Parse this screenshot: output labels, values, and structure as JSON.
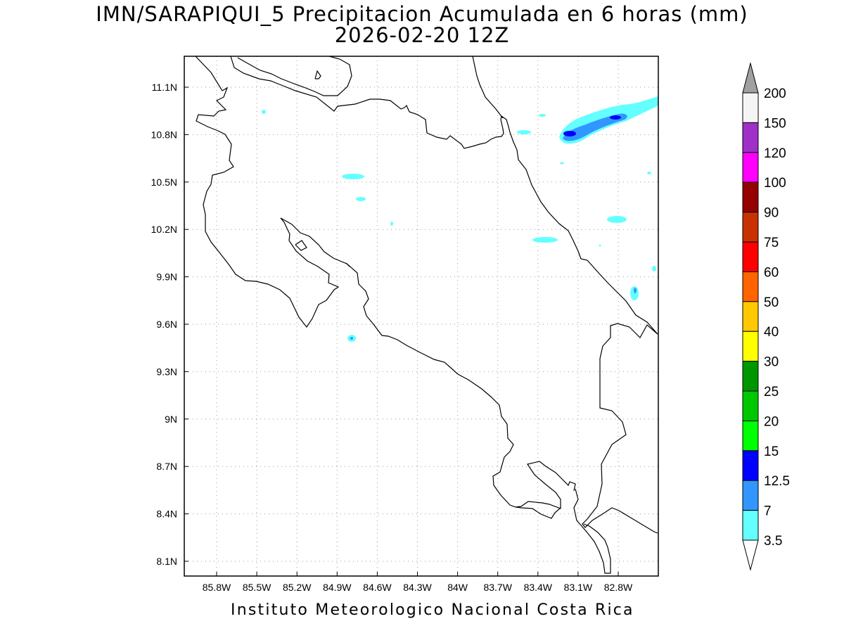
{
  "title_line1": "IMN/SARAPIQUI_5 Precipitacion Acumulada en 6 horas (mm)",
  "title_line2": "2026-02-20 12Z",
  "footer": "Instituto Meteorologico Nacional Costa Rica",
  "lon_ticks": [
    "85.8W",
    "85.5W",
    "85.2W",
    "84.9W",
    "84.6W",
    "84.3W",
    "84W",
    "83.7W",
    "83.4W",
    "83.1W",
    "82.8W"
  ],
  "lat_ticks": [
    "11.1N",
    "10.8N",
    "10.5N",
    "10.2N",
    "9.9N",
    "9.6N",
    "9.3N",
    "9N",
    "8.7N",
    "8.4N",
    "8.1N"
  ],
  "colorbar": {
    "labels": [
      "200",
      "150",
      "120",
      "100",
      "90",
      "75",
      "60",
      "50",
      "40",
      "30",
      "25",
      "20",
      "15",
      "12.5",
      "7",
      "3.5"
    ],
    "colors": [
      "#a0a0a0",
      "#f5f5f5",
      "#a030c8",
      "#ff00ff",
      "#960000",
      "#c83200",
      "#ff0000",
      "#ff6400",
      "#ffc800",
      "#ffff00",
      "#009600",
      "#00c800",
      "#00ff00",
      "#0000ff",
      "#3296ff",
      "#64ffff",
      "#ffffff"
    ]
  },
  "precip_colors": {
    "light": "#64ffff",
    "medium": "#3296ff",
    "heavy": "#0000ff"
  }
}
